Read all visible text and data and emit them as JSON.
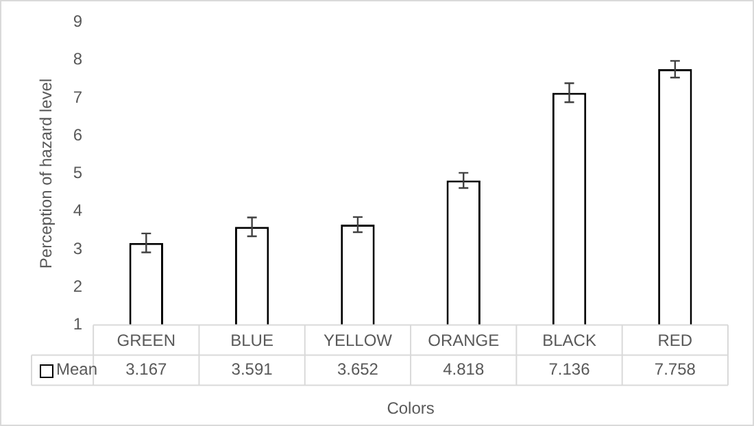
{
  "chart_data": {
    "type": "bar",
    "xlabel": "Colors",
    "ylabel": "Perception of hazard level",
    "categories": [
      "GREEN",
      "BLUE",
      "YELLOW",
      "ORANGE",
      "BLACK",
      "RED"
    ],
    "series": [
      {
        "name": "Mean",
        "color": "#ffffff",
        "values": [
          3.167,
          3.591,
          3.652,
          4.818,
          7.136,
          7.758
        ],
        "errors": [
          0.25,
          0.25,
          0.2,
          0.2,
          0.25,
          0.22
        ]
      }
    ],
    "ylim": [
      1,
      9
    ],
    "yticks": [
      1,
      2,
      3,
      4,
      5,
      6,
      7,
      8,
      9
    ],
    "grid": false,
    "legend": "bottom left",
    "data_labels": true
  }
}
